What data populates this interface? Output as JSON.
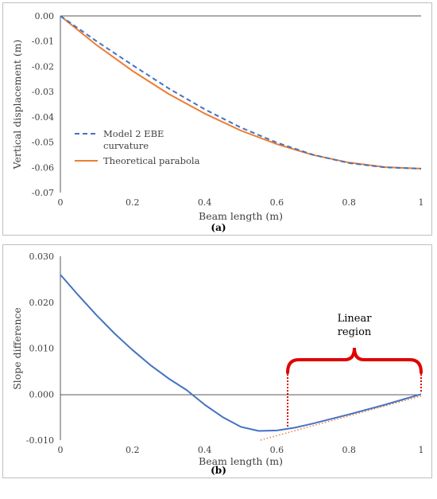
{
  "chart_data": [
    {
      "type": "line",
      "panel": "a",
      "xlabel": "Beam length (m)",
      "ylabel": "Vertical displacement (m)",
      "xlim": [
        0,
        1
      ],
      "ylim": [
        -0.07,
        0
      ],
      "xticks": [
        "0",
        "0.2",
        "0.4",
        "0.6",
        "0.8",
        "1"
      ],
      "yticks": [
        "0.00",
        "-0.01",
        "-0.02",
        "-0.03",
        "-0.04",
        "-0.05",
        "-0.06",
        "-0.07"
      ],
      "grid": false,
      "legend_position": "bottom-left",
      "caption": "(a)",
      "series": [
        {
          "name": "Model 2 EBE curvature",
          "legend_lines": [
            "Model 2 EBE",
            "curvature"
          ],
          "color": "#4472c4",
          "style": "dashed",
          "x": [
            0,
            0.1,
            0.2,
            0.3,
            0.4,
            0.5,
            0.6,
            0.7,
            0.8,
            0.9,
            1.0
          ],
          "y": [
            0,
            -0.01,
            -0.0195,
            -0.0287,
            -0.037,
            -0.0442,
            -0.0502,
            -0.055,
            -0.0583,
            -0.06,
            -0.0605
          ]
        },
        {
          "name": "Theoretical parabola",
          "legend_lines": [
            "Theoretical parabola"
          ],
          "color": "#ed7d31",
          "style": "solid",
          "x": [
            0,
            0.1,
            0.2,
            0.3,
            0.4,
            0.5,
            0.6,
            0.7,
            0.8,
            0.9,
            1.0
          ],
          "y": [
            0,
            -0.0115,
            -0.0218,
            -0.0309,
            -0.0387,
            -0.0454,
            -0.0508,
            -0.0551,
            -0.0581,
            -0.0599,
            -0.0605
          ]
        }
      ]
    },
    {
      "type": "line",
      "panel": "b",
      "xlabel": "Beam length (m)",
      "ylabel": "Slope difference",
      "xlim": [
        0,
        1
      ],
      "ylim": [
        -0.01,
        0.03
      ],
      "xticks": [
        "0",
        "0.2",
        "0.4",
        "0.6",
        "0.8",
        "1"
      ],
      "yticks": [
        "0.030",
        "0.020",
        "0.010",
        "0.000",
        "-0.010"
      ],
      "grid": false,
      "caption": "(b)",
      "series": [
        {
          "color": "#4472c4",
          "style": "solid",
          "x": [
            0,
            0.05,
            0.1,
            0.15,
            0.2,
            0.25,
            0.3,
            0.35,
            0.4,
            0.45,
            0.5,
            0.55,
            0.6,
            0.65,
            0.7,
            0.8,
            0.9,
            1.0
          ],
          "y": [
            0.026,
            0.0215,
            0.0172,
            0.0132,
            0.0096,
            0.0063,
            0.0034,
            0.0009,
            -0.0023,
            -0.005,
            -0.0071,
            -0.008,
            -0.0079,
            -0.0073,
            -0.0064,
            -0.0044,
            -0.0023,
            0.0
          ]
        },
        {
          "color": "#ed7d31",
          "style": "dotted",
          "x": [
            0.555,
            1.0
          ],
          "y": [
            -0.01,
            -0.0004
          ]
        }
      ],
      "annotations": {
        "label_lines": [
          "Linear",
          "region"
        ],
        "bracket_x": [
          0.63,
          1.0
        ],
        "bracket_color": "#e00000"
      }
    }
  ]
}
